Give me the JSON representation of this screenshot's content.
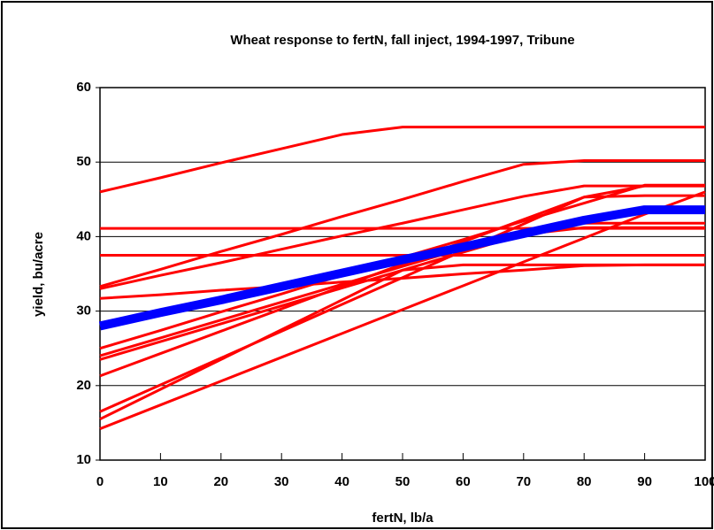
{
  "chart_data": {
    "type": "line",
    "title": "Wheat response to fertN, fall inject, 1994-1997, Tribune",
    "x_label": "fertN, lb/a",
    "y_label": "yield, bu/acre",
    "x": [
      0,
      10,
      20,
      30,
      40,
      50,
      60,
      70,
      80,
      90,
      100
    ],
    "xlim": [
      0,
      100
    ],
    "xticks": [
      0,
      10,
      20,
      30,
      40,
      50,
      60,
      70,
      80,
      90,
      100
    ],
    "ylim": [
      10,
      60
    ],
    "yticks": [
      10,
      20,
      30,
      40,
      50,
      60
    ],
    "grid": true,
    "series": [
      {
        "color": "#ff0000",
        "values": [
          46,
          47.9,
          49.9,
          51.8,
          53.7,
          54.7,
          54.7,
          54.7,
          54.7,
          54.7,
          54.7
        ]
      },
      {
        "color": "#ff0000",
        "values": [
          33.3,
          35.6,
          38,
          40.3,
          42.7,
          45,
          47.4,
          49.7,
          50.2,
          50.2,
          50.2
        ]
      },
      {
        "color": "#ff0000",
        "values": [
          41.1,
          41.1,
          41.1,
          41.1,
          41.1,
          41.1,
          41.1,
          41.1,
          41.1,
          41.1,
          41.1
        ]
      },
      {
        "color": "#ff0000",
        "values": [
          37.5,
          37.5,
          37.5,
          37.5,
          37.5,
          37.5,
          37.5,
          37.5,
          37.5,
          37.5,
          37.5
        ]
      },
      {
        "color": "#ff0000",
        "values": [
          33,
          34.8,
          36.5,
          38.3,
          40.1,
          41.8,
          43.6,
          45.4,
          46.8,
          46.8,
          46.8
        ]
      },
      {
        "color": "#ff0000",
        "values": [
          31.7,
          32.2,
          32.8,
          33.3,
          33.9,
          34.4,
          35,
          35.5,
          36.1,
          36.2,
          36.2
        ]
      },
      {
        "color": "#ff0000",
        "values": [
          25,
          27.4,
          29.9,
          32.3,
          34.8,
          37.2,
          39.6,
          42.1,
          44.5,
          46.9,
          46.9
        ]
      },
      {
        "color": "#ff0000",
        "values": [
          24,
          26.4,
          28.8,
          31.2,
          33.6,
          36,
          38.4,
          40.8,
          41.8,
          41.8,
          41.8
        ]
      },
      {
        "color": "#ff0000",
        "values": [
          23.5,
          25.9,
          28.3,
          30.7,
          33.1,
          35.5,
          37.9,
          40.3,
          41.2,
          41.2,
          41.2
        ]
      },
      {
        "color": "#ff0000",
        "values": [
          21.3,
          24.3,
          27.3,
          30.3,
          33.3,
          36.3,
          39.3,
          42.3,
          45.3,
          45.5,
          45.5
        ]
      },
      {
        "color": "#ff0000",
        "values": [
          16.5,
          20.1,
          23.7,
          27.3,
          30.9,
          34.5,
          38.1,
          41.7,
          45.3,
          46.8,
          46.8
        ]
      },
      {
        "color": "#ff0000",
        "values": [
          15.5,
          19.5,
          23.5,
          27.5,
          31.5,
          35.5,
          36.2,
          36.2,
          36.2,
          36.2,
          36.2
        ]
      },
      {
        "color": "#ff0000",
        "values": [
          14.2,
          17.4,
          20.6,
          23.8,
          27,
          30.2,
          33.4,
          36.6,
          39.8,
          43,
          46
        ]
      },
      {
        "color": "#0000ff",
        "width": 10,
        "values": [
          28,
          29.8,
          31.5,
          33.3,
          35.1,
          36.9,
          38.6,
          40.4,
          42.2,
          43.6,
          43.6
        ]
      }
    ]
  }
}
